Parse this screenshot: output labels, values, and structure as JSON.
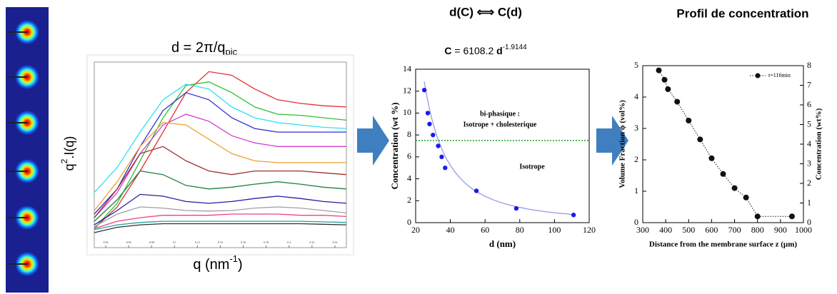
{
  "chart_data": [
    {
      "type": "line",
      "annotation": "d = 2π/q",
      "annotation_sub": "pic",
      "ylabel": [
        "q",
        "2",
        ".I(q)"
      ],
      "xlabel": [
        "q (nm",
        "-1",
        ")"
      ],
      "xlim": [
        0.03,
        0.25
      ],
      "ylim": [
        0.5,
        3.6
      ],
      "xticks": [
        0.04,
        0.06,
        0.08,
        0.1,
        0.12,
        0.14,
        0.16,
        0.18,
        0.2,
        0.22,
        0.24
      ],
      "x": [
        0.03,
        0.05,
        0.07,
        0.09,
        0.11,
        0.13,
        0.15,
        0.17,
        0.19,
        0.21,
        0.23,
        0.25
      ],
      "series": [
        {
          "color": "#e03030",
          "values": [
            0.82,
            1.18,
            1.78,
            2.43,
            3.09,
            3.44,
            3.38,
            3.15,
            2.97,
            2.91,
            2.87,
            2.85
          ]
        },
        {
          "color": "#30c030",
          "values": [
            0.82,
            1.24,
            1.95,
            2.67,
            3.21,
            3.27,
            3.09,
            2.85,
            2.73,
            2.71,
            2.67,
            2.63
          ]
        },
        {
          "color": "#30e0f0",
          "values": [
            1.42,
            1.84,
            2.43,
            2.97,
            3.23,
            3.15,
            2.85,
            2.67,
            2.59,
            2.55,
            2.51,
            2.49
          ]
        },
        {
          "color": "#3030d0",
          "values": [
            1.06,
            1.48,
            2.19,
            2.79,
            3.09,
            2.97,
            2.67,
            2.49,
            2.43,
            2.43,
            2.43,
            2.43
          ]
        },
        {
          "color": "#d040d0",
          "values": [
            1.0,
            1.42,
            2.07,
            2.55,
            2.73,
            2.61,
            2.37,
            2.25,
            2.19,
            2.19,
            2.19,
            2.19
          ]
        },
        {
          "color": "#f0a030",
          "values": [
            1.12,
            1.6,
            2.19,
            2.59,
            2.55,
            2.31,
            2.07,
            1.95,
            1.92,
            1.92,
            1.92,
            1.92
          ]
        },
        {
          "color": "#a03030",
          "values": [
            1.0,
            1.48,
            2.07,
            2.19,
            1.95,
            1.78,
            1.72,
            1.78,
            1.78,
            1.78,
            1.75,
            1.72
          ]
        },
        {
          "color": "#208040",
          "values": [
            0.94,
            1.3,
            1.78,
            1.72,
            1.54,
            1.48,
            1.51,
            1.56,
            1.6,
            1.56,
            1.51,
            1.48
          ]
        },
        {
          "color": "#2020a0",
          "values": [
            0.88,
            1.12,
            1.39,
            1.36,
            1.27,
            1.24,
            1.27,
            1.32,
            1.36,
            1.32,
            1.27,
            1.24
          ]
        },
        {
          "color": "#a0a0a0",
          "values": [
            0.85,
            1.06,
            1.18,
            1.16,
            1.12,
            1.11,
            1.12,
            1.16,
            1.18,
            1.16,
            1.12,
            1.08
          ]
        },
        {
          "color": "#f04080",
          "values": [
            0.82,
            0.94,
            1.0,
            1.04,
            1.04,
            1.04,
            1.06,
            1.06,
            1.06,
            1.04,
            1.04,
            1.02
          ]
        },
        {
          "color": "#20a0a0",
          "values": [
            0.8,
            0.88,
            0.92,
            0.94,
            0.94,
            0.94,
            0.94,
            0.94,
            0.94,
            0.94,
            0.93,
            0.92
          ]
        },
        {
          "color": "#303030",
          "values": [
            0.75,
            0.84,
            0.88,
            0.9,
            0.9,
            0.9,
            0.9,
            0.9,
            0.9,
            0.9,
            0.89,
            0.88
          ]
        }
      ]
    },
    {
      "type": "scatter",
      "title": "d(C) ⟺ C(d)",
      "fit_label": [
        "C",
        "=",
        "d"
      ],
      "fit": {
        "coefficient": 6108.2,
        "exponent": -1.9144
      },
      "fit_color": "#9a9ae0",
      "xlabel": "d (nm)",
      "ylabel": "Concentration (wt %)",
      "xlim": [
        20,
        120
      ],
      "ylim": [
        0,
        14
      ],
      "xticks": [
        20,
        40,
        60,
        80,
        100,
        120
      ],
      "yticks": [
        0,
        2,
        4,
        6,
        8,
        10,
        12,
        14
      ],
      "hline": 7.5,
      "hline_color": "#20a020",
      "annotations": [
        "bi-phasique :",
        "Isotrope + cholesterique",
        "Isotrope"
      ],
      "color": "#1a1aee",
      "x": [
        25,
        27,
        28,
        30,
        33,
        35,
        37,
        55,
        78,
        111
      ],
      "values": [
        12.1,
        10,
        9,
        8,
        7,
        6,
        5,
        2.9,
        1.3,
        0.7
      ]
    },
    {
      "type": "scatter",
      "title": "Profil de concentration",
      "xlabel": "Distance from the membrane surface z (µm)",
      "ylabel": "Volume Fraction ϕ (vol%)",
      "y2label": "Concentration (wt%)",
      "xlim": [
        300,
        1000
      ],
      "ylim": [
        0,
        5
      ],
      "y2lim": [
        0,
        8
      ],
      "xticks": [
        300,
        400,
        500,
        600,
        700,
        800,
        900,
        1000
      ],
      "yticks": [
        0,
        1,
        2,
        3,
        4,
        5
      ],
      "y2ticks": [
        0,
        1,
        2,
        3,
        4,
        5,
        6,
        7,
        8
      ],
      "legend": "upper right",
      "connect": "dotted",
      "series": [
        {
          "name": "t=116min",
          "color": "#111111",
          "x": [
            370,
            395,
            410,
            450,
            500,
            550,
            600,
            650,
            700,
            750,
            800,
            950
          ],
          "values": [
            4.85,
            4.55,
            4.25,
            3.85,
            3.25,
            2.65,
            2.05,
            1.55,
            1.1,
            0.8,
            0.2,
            0.2
          ]
        }
      ]
    }
  ]
}
